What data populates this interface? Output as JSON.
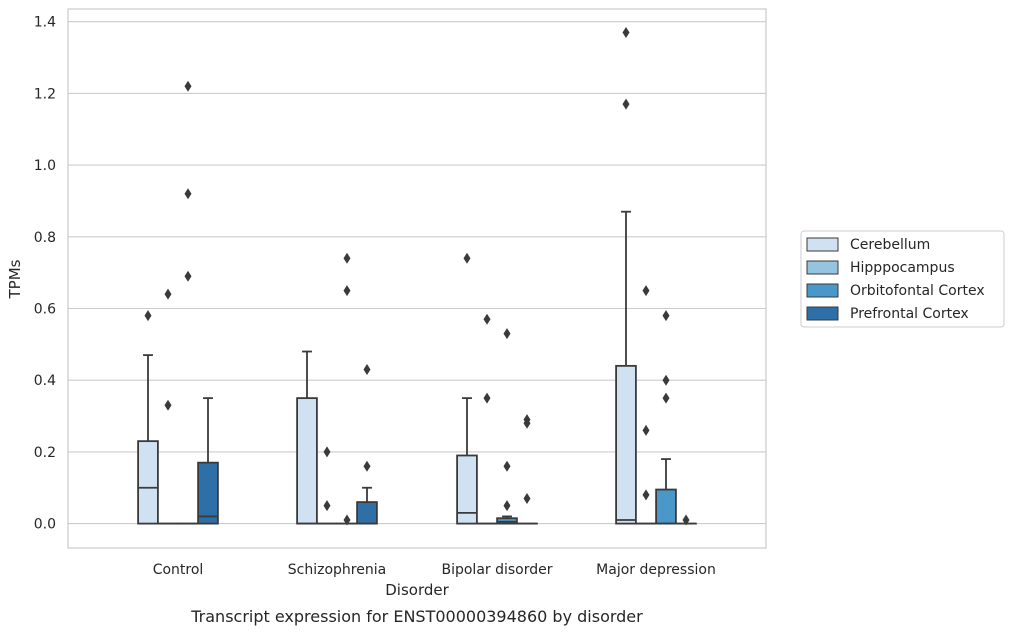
{
  "chart_data": {
    "type": "box",
    "title": "",
    "caption": "Transcript expression for ENST00000394860 by disorder",
    "xlabel": "Disorder",
    "ylabel": "TPMs",
    "ylim": [
      -0.067,
      1.44
    ],
    "yticks": [
      "0.0",
      "0.2",
      "0.4",
      "0.6",
      "0.8",
      "1.0",
      "1.2",
      "1.4"
    ],
    "ytick_values": [
      0,
      0.2,
      0.4,
      0.6,
      0.8,
      1.0,
      1.2,
      1.4
    ],
    "grid": true,
    "legend_position": "right",
    "categories": [
      "Control",
      "Schizophrenia",
      "Bipolar disorder",
      "Major depression"
    ],
    "series": [
      {
        "name": "Cerebellum",
        "color": "#d0e1f2",
        "boxes": [
          {
            "q1": 0,
            "median": 0.1,
            "q3": 0.23,
            "whisker_low": 0,
            "whisker_high": 0.47,
            "outliers": [
              0.58
            ]
          },
          {
            "q1": 0,
            "median": 0,
            "q3": 0.35,
            "whisker_low": 0,
            "whisker_high": 0.48,
            "outliers": []
          },
          {
            "q1": 0,
            "median": 0.03,
            "q3": 0.19,
            "whisker_low": 0,
            "whisker_high": 0.35,
            "outliers": [
              0.74
            ]
          },
          {
            "q1": 0,
            "median": 0.01,
            "q3": 0.44,
            "whisker_low": 0,
            "whisker_high": 0.87,
            "outliers": [
              1.17,
              1.37
            ]
          }
        ]
      },
      {
        "name": "Hipppocampus",
        "color": "#94c4df",
        "boxes": [
          {
            "q1": 0,
            "median": 0,
            "q3": 0,
            "whisker_low": 0,
            "whisker_high": 0,
            "outliers": [
              0.33,
              0.64
            ]
          },
          {
            "q1": 0,
            "median": 0,
            "q3": 0,
            "whisker_low": 0,
            "whisker_high": 0,
            "outliers": [
              0.2,
              0.05
            ]
          },
          {
            "q1": 0,
            "median": 0,
            "q3": 0,
            "whisker_low": 0,
            "whisker_high": 0,
            "outliers": [
              0.35,
              0.57
            ]
          },
          {
            "q1": 0,
            "median": 0,
            "q3": 0,
            "whisker_low": 0,
            "whisker_high": 0,
            "outliers": [
              0.08,
              0.26,
              0.65
            ]
          }
        ]
      },
      {
        "name": "Orbitofontal Cortex",
        "color": "#4a98c9",
        "boxes": [
          {
            "q1": 0,
            "median": 0,
            "q3": 0,
            "whisker_low": 0,
            "whisker_high": 0,
            "outliers": [
              0.69,
              0.92,
              1.22
            ]
          },
          {
            "q1": 0,
            "median": 0,
            "q3": 0,
            "whisker_low": 0,
            "whisker_high": 0,
            "outliers": [
              0.01,
              0.65,
              0.74
            ]
          },
          {
            "q1": 0,
            "median": 0.005,
            "q3": 0.015,
            "whisker_low": 0,
            "whisker_high": 0.02,
            "outliers": [
              0.05,
              0.16,
              0.53
            ]
          },
          {
            "q1": 0,
            "median": 0,
            "q3": 0.095,
            "whisker_low": 0,
            "whisker_high": 0.18,
            "outliers": [
              0.35,
              0.4,
              0.58
            ]
          }
        ]
      },
      {
        "name": "Prefrontal Cortex",
        "color": "#2e6fa7",
        "boxes": [
          {
            "q1": 0,
            "median": 0.02,
            "q3": 0.17,
            "whisker_low": 0,
            "whisker_high": 0.35,
            "outliers": []
          },
          {
            "q1": 0,
            "median": 0,
            "q3": 0.06,
            "whisker_low": 0,
            "whisker_high": 0.1,
            "outliers": [
              0.16,
              0.43
            ]
          },
          {
            "q1": 0,
            "median": 0,
            "q3": 0,
            "whisker_low": 0,
            "whisker_high": 0,
            "outliers": [
              0.07,
              0.28,
              0.29
            ]
          },
          {
            "q1": 0,
            "median": 0,
            "q3": 0,
            "whisker_low": 0,
            "whisker_high": 0,
            "outliers": [
              0.01
            ]
          }
        ]
      }
    ]
  }
}
